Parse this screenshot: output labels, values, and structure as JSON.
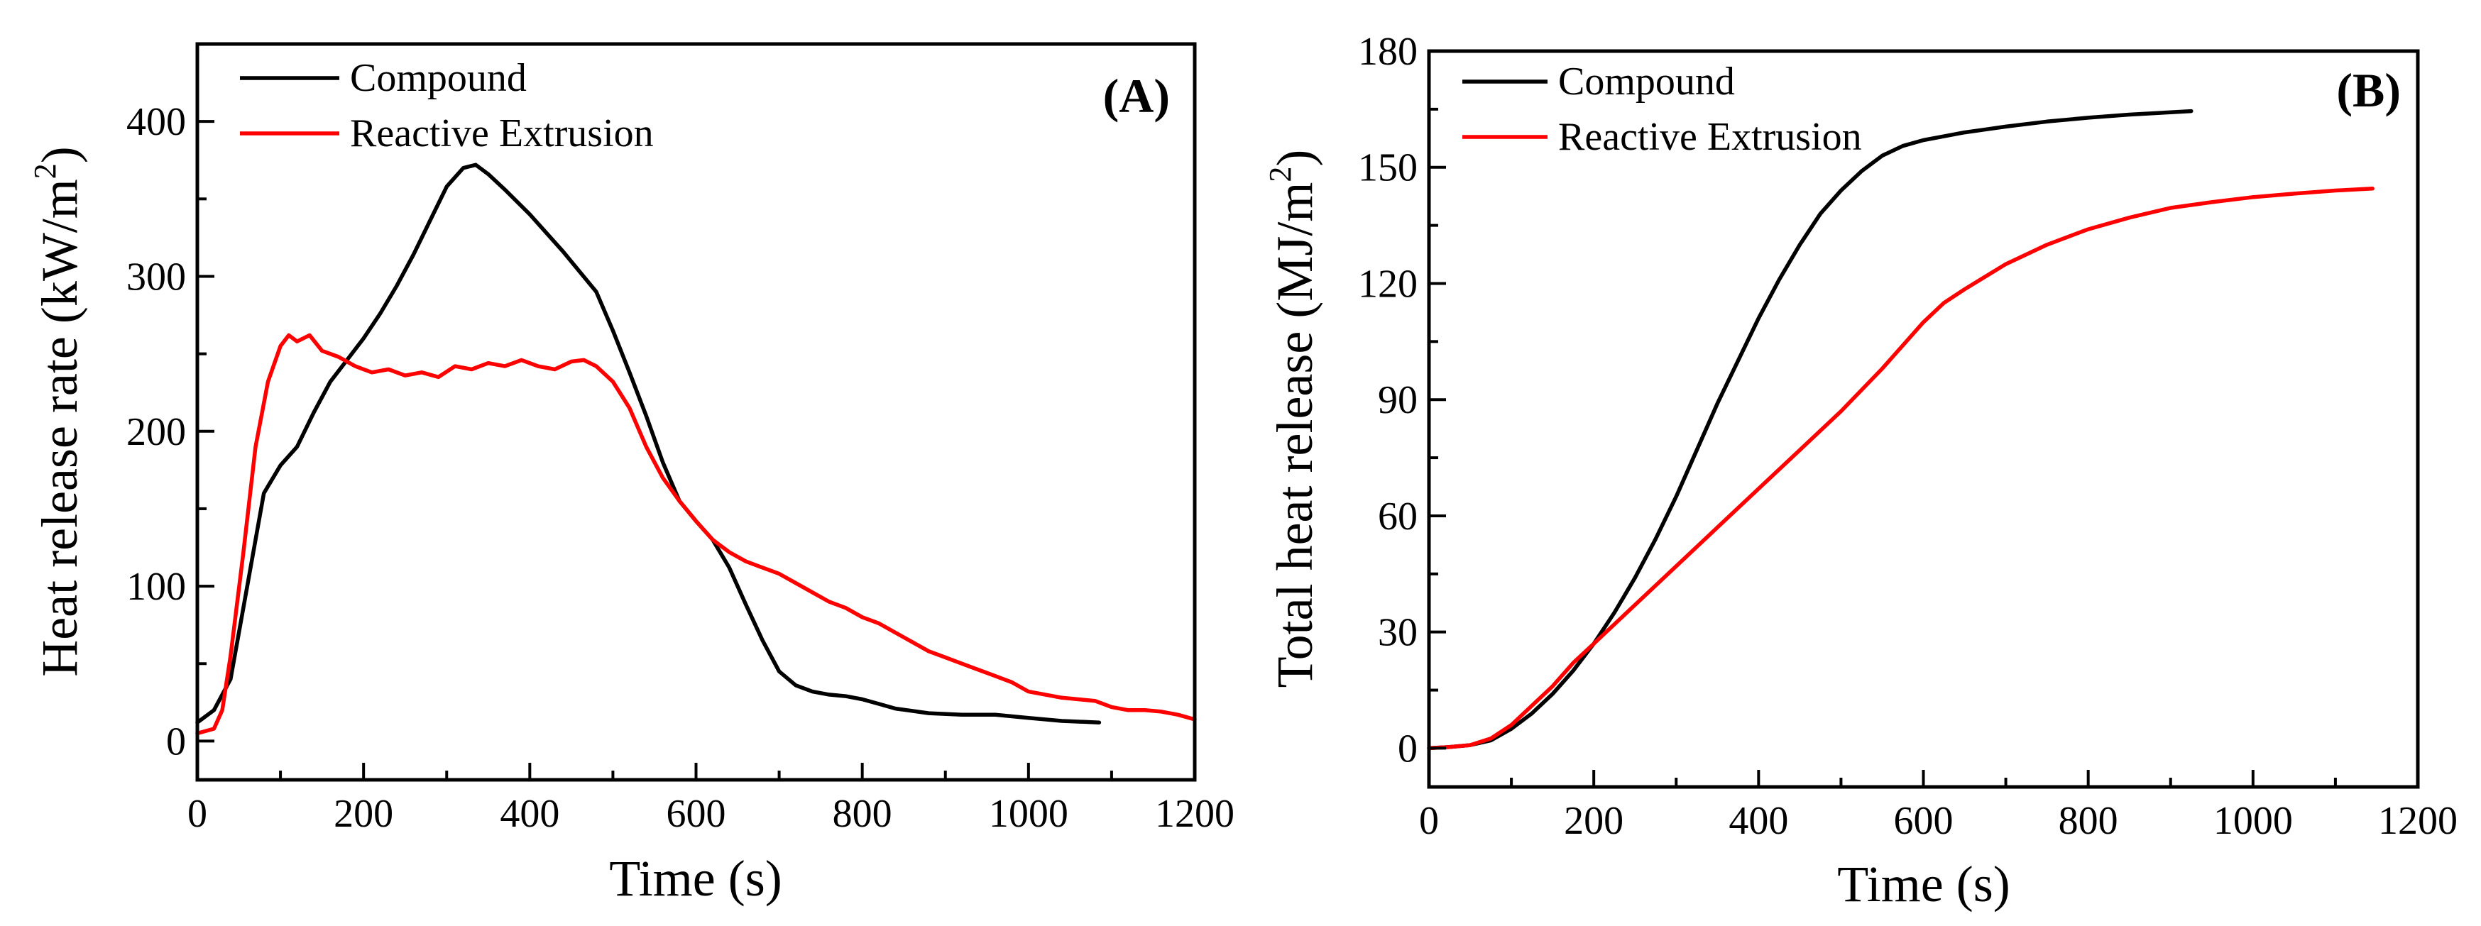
{
  "colors": {
    "compound": "#000000",
    "reactive": "#ff0000",
    "axis": "#000000"
  },
  "chart_data": [
    {
      "type": "line",
      "panel_label": "(A)",
      "xlabel": "Time (s)",
      "ylabel_main": "Heat release rate (kW/m",
      "ylabel_sup": "2",
      "ylabel_end": ")",
      "xlim": [
        0,
        1200
      ],
      "ylim": [
        -25,
        450
      ],
      "x_ticks": [
        0,
        200,
        400,
        600,
        800,
        1000,
        1200
      ],
      "x_tick_labels": [
        "0",
        "200",
        "400",
        "600",
        "800",
        "1000",
        "1200"
      ],
      "y_ticks": [
        0,
        100,
        200,
        300,
        400
      ],
      "y_tick_labels": [
        "0",
        "100",
        "200",
        "300",
        "400"
      ],
      "legend_position": "top-left",
      "series": [
        {
          "name": "Compound",
          "color": "#000000",
          "x": [
            0,
            20,
            40,
            60,
            80,
            100,
            120,
            140,
            160,
            180,
            200,
            220,
            240,
            260,
            280,
            300,
            320,
            335,
            350,
            370,
            400,
            440,
            480,
            500,
            520,
            540,
            560,
            580,
            600,
            620,
            640,
            660,
            680,
            700,
            720,
            740,
            760,
            780,
            800,
            820,
            840,
            880,
            920,
            960,
            1000,
            1040,
            1085
          ],
          "y": [
            12,
            20,
            40,
            100,
            160,
            178,
            190,
            212,
            232,
            246,
            260,
            276,
            294,
            314,
            336,
            358,
            370,
            372,
            366,
            356,
            340,
            316,
            290,
            265,
            238,
            210,
            180,
            155,
            142,
            130,
            112,
            88,
            65,
            45,
            36,
            32,
            30,
            29,
            27,
            24,
            21,
            18,
            17,
            17,
            15,
            13,
            12
          ]
        },
        {
          "name": "Reactive Extrusion",
          "color": "#ff0000",
          "x": [
            0,
            20,
            30,
            40,
            55,
            70,
            85,
            100,
            110,
            120,
            135,
            150,
            170,
            190,
            210,
            230,
            250,
            270,
            290,
            310,
            330,
            350,
            370,
            390,
            410,
            430,
            450,
            465,
            480,
            500,
            520,
            540,
            560,
            580,
            600,
            620,
            640,
            660,
            680,
            700,
            720,
            740,
            760,
            780,
            800,
            820,
            840,
            860,
            880,
            900,
            920,
            940,
            960,
            980,
            1000,
            1020,
            1040,
            1060,
            1080,
            1100,
            1120,
            1140,
            1160,
            1180,
            1200
          ],
          "y": [
            5,
            8,
            20,
            55,
            120,
            190,
            232,
            255,
            262,
            258,
            262,
            252,
            248,
            242,
            238,
            240,
            236,
            238,
            235,
            242,
            240,
            244,
            242,
            246,
            242,
            240,
            245,
            246,
            242,
            232,
            215,
            190,
            170,
            155,
            142,
            130,
            122,
            116,
            112,
            108,
            102,
            96,
            90,
            86,
            80,
            76,
            70,
            64,
            58,
            54,
            50,
            46,
            42,
            38,
            32,
            30,
            28,
            27,
            26,
            22,
            20,
            20,
            19,
            17,
            14
          ]
        }
      ]
    },
    {
      "type": "line",
      "panel_label": "(B)",
      "xlabel": "Time (s)",
      "ylabel_main": "Total heat release (MJ/m",
      "ylabel_sup": "2",
      "ylabel_end": ")",
      "xlim": [
        0,
        1200
      ],
      "ylim": [
        -10,
        180
      ],
      "x_ticks": [
        0,
        200,
        400,
        600,
        800,
        1000,
        1200
      ],
      "x_tick_labels": [
        "0",
        "200",
        "400",
        "600",
        "800",
        "1000",
        "1200"
      ],
      "y_ticks": [
        0,
        30,
        60,
        90,
        120,
        150,
        180
      ],
      "y_tick_labels": [
        "0",
        "30",
        "60",
        "90",
        "120",
        "150",
        "180"
      ],
      "legend_position": "top-left",
      "series": [
        {
          "name": "Compound",
          "color": "#000000",
          "x": [
            0,
            25,
            50,
            75,
            100,
            125,
            150,
            175,
            200,
            225,
            250,
            275,
            300,
            325,
            350,
            375,
            400,
            425,
            450,
            475,
            500,
            525,
            550,
            575,
            600,
            625,
            650,
            700,
            750,
            800,
            850,
            900,
            925
          ],
          "y": [
            0,
            0.3,
            0.8,
            2,
            5,
            9,
            14,
            20,
            27,
            35,
            44,
            54,
            65,
            77,
            89,
            100,
            111,
            121,
            130,
            138,
            144,
            149,
            153,
            155.5,
            157,
            158,
            159,
            160.5,
            161.8,
            162.8,
            163.6,
            164.2,
            164.5
          ]
        },
        {
          "name": "Reactive Extrusion",
          "color": "#ff0000",
          "x": [
            0,
            25,
            50,
            75,
            100,
            125,
            150,
            175,
            200,
            250,
            300,
            350,
            400,
            450,
            500,
            550,
            575,
            600,
            625,
            650,
            700,
            750,
            800,
            850,
            900,
            950,
            1000,
            1050,
            1100,
            1145
          ],
          "y": [
            0,
            0.3,
            0.8,
            2.5,
            6,
            11,
            16,
            22,
            27,
            37,
            47,
            57,
            67,
            77,
            87,
            98,
            104,
            110,
            115,
            118.5,
            125,
            130,
            134,
            137,
            139.5,
            141,
            142.3,
            143.2,
            144,
            144.5
          ]
        }
      ]
    }
  ]
}
